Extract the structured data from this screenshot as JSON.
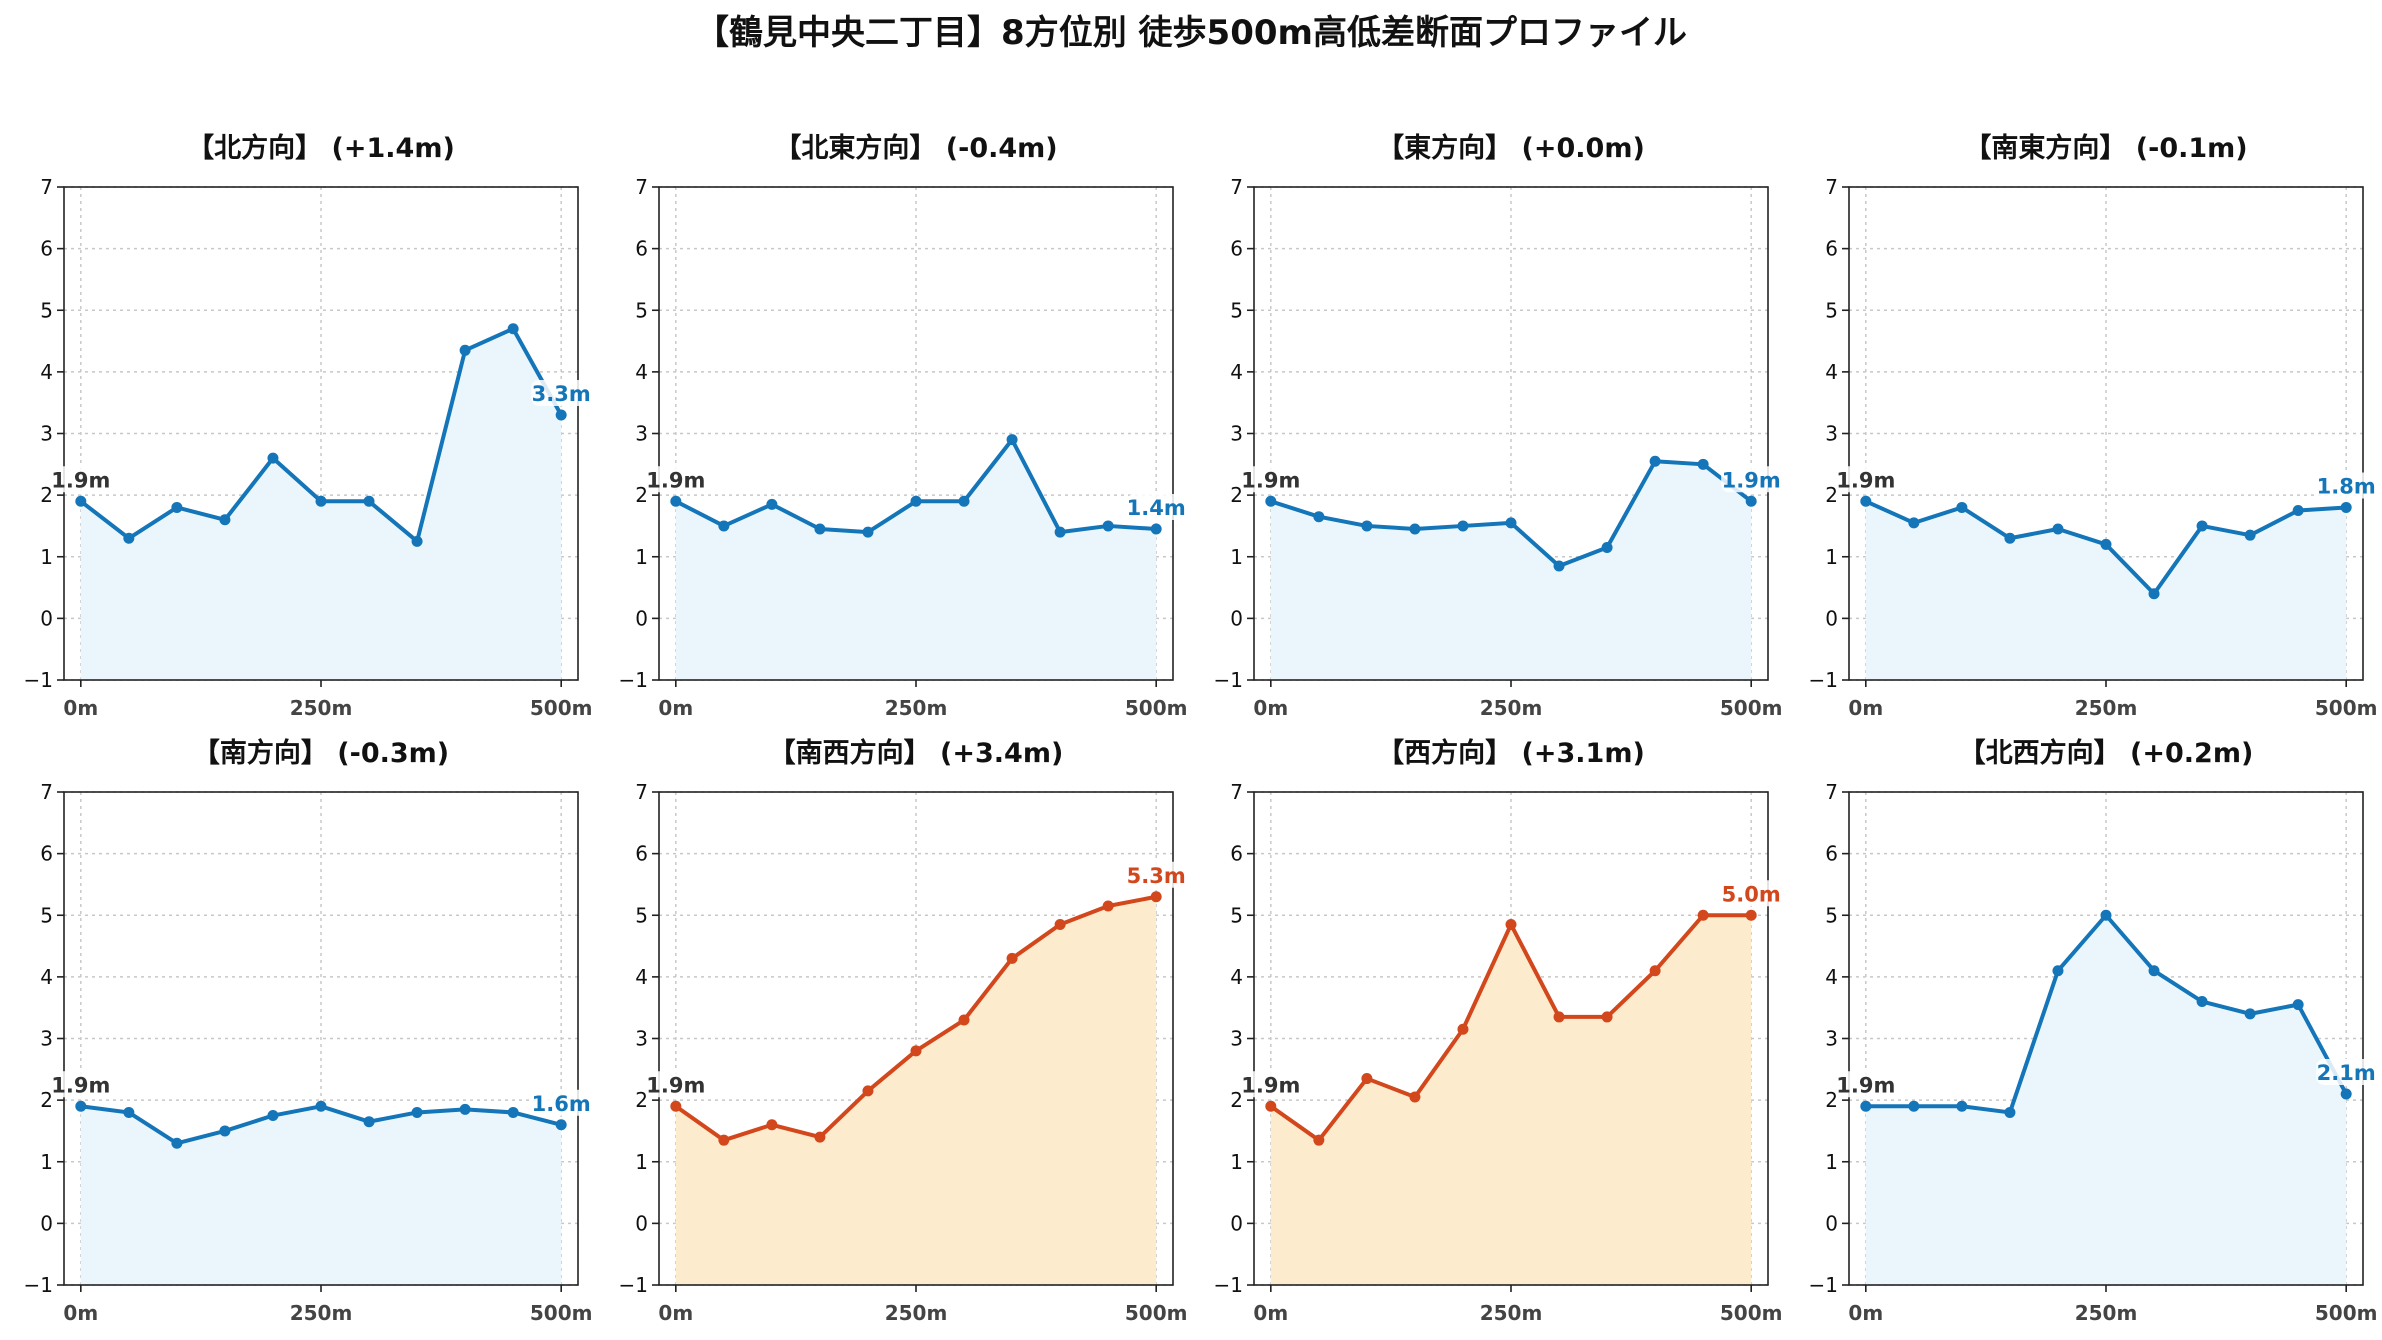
{
  "suptitle": "【鶴見中央二丁目】8方位別 徒歩500m高低差断面プロファイル",
  "colors": {
    "up": "#d2471c",
    "up_fill": "#fdebcd",
    "other": "#1475b8",
    "other_fill": "#eaf6fc",
    "start_label": "#333333"
  },
  "chart_data": [
    {
      "type": "line",
      "title": "【北方向】 (+1.4m)",
      "x": [
        0,
        50,
        100,
        150,
        200,
        250,
        300,
        350,
        400,
        450,
        500
      ],
      "values": [
        1.9,
        1.3,
        1.8,
        1.6,
        2.6,
        1.9,
        1.9,
        1.25,
        4.35,
        4.7,
        3.3
      ],
      "start_label": "1.9m",
      "end_label": "3.3m",
      "trend": "other",
      "ylim": [
        -1,
        7
      ],
      "yticks": [
        -1,
        0,
        1,
        2,
        3,
        4,
        5,
        6,
        7
      ],
      "ytick_labels": [
        "−1",
        "0",
        "1",
        "2",
        "3",
        "4",
        "5",
        "6",
        "7"
      ],
      "xticks": [
        0,
        250,
        500
      ],
      "xtick_labels": [
        "0m",
        "250m",
        "500m"
      ],
      "grid": true
    },
    {
      "type": "line",
      "title": "【北東方向】 (-0.4m)",
      "x": [
        0,
        50,
        100,
        150,
        200,
        250,
        300,
        350,
        400,
        450,
        500
      ],
      "values": [
        1.9,
        1.5,
        1.85,
        1.45,
        1.4,
        1.9,
        1.9,
        2.9,
        1.4,
        1.5,
        1.45
      ],
      "start_label": "1.9m",
      "end_label": "1.4m",
      "trend": "other",
      "ylim": [
        -1,
        7
      ],
      "yticks": [
        -1,
        0,
        1,
        2,
        3,
        4,
        5,
        6,
        7
      ],
      "ytick_labels": [
        "−1",
        "0",
        "1",
        "2",
        "3",
        "4",
        "5",
        "6",
        "7"
      ],
      "xticks": [
        0,
        250,
        500
      ],
      "xtick_labels": [
        "0m",
        "250m",
        "500m"
      ],
      "grid": true
    },
    {
      "type": "line",
      "title": "【東方向】 (+0.0m)",
      "x": [
        0,
        50,
        100,
        150,
        200,
        250,
        300,
        350,
        400,
        450,
        500
      ],
      "values": [
        1.9,
        1.65,
        1.5,
        1.45,
        1.5,
        1.55,
        0.85,
        1.15,
        2.55,
        2.5,
        1.9
      ],
      "start_label": "1.9m",
      "end_label": "1.9m",
      "trend": "other",
      "ylim": [
        -1,
        7
      ],
      "yticks": [
        -1,
        0,
        1,
        2,
        3,
        4,
        5,
        6,
        7
      ],
      "ytick_labels": [
        "−1",
        "0",
        "1",
        "2",
        "3",
        "4",
        "5",
        "6",
        "7"
      ],
      "xticks": [
        0,
        250,
        500
      ],
      "xtick_labels": [
        "0m",
        "250m",
        "500m"
      ],
      "grid": true
    },
    {
      "type": "line",
      "title": "【南東方向】 (-0.1m)",
      "x": [
        0,
        50,
        100,
        150,
        200,
        250,
        300,
        350,
        400,
        450,
        500
      ],
      "values": [
        1.9,
        1.55,
        1.8,
        1.3,
        1.45,
        1.2,
        0.4,
        1.5,
        1.35,
        1.75,
        1.8
      ],
      "start_label": "1.9m",
      "end_label": "1.8m",
      "trend": "other",
      "ylim": [
        -1,
        7
      ],
      "yticks": [
        -1,
        0,
        1,
        2,
        3,
        4,
        5,
        6,
        7
      ],
      "ytick_labels": [
        "−1",
        "0",
        "1",
        "2",
        "3",
        "4",
        "5",
        "6",
        "7"
      ],
      "xticks": [
        0,
        250,
        500
      ],
      "xtick_labels": [
        "0m",
        "250m",
        "500m"
      ],
      "grid": true
    },
    {
      "type": "line",
      "title": "【南方向】 (-0.3m)",
      "x": [
        0,
        50,
        100,
        150,
        200,
        250,
        300,
        350,
        400,
        450,
        500
      ],
      "values": [
        1.9,
        1.8,
        1.3,
        1.5,
        1.75,
        1.9,
        1.65,
        1.8,
        1.85,
        1.8,
        1.6
      ],
      "start_label": "1.9m",
      "end_label": "1.6m",
      "trend": "other",
      "ylim": [
        -1,
        7
      ],
      "yticks": [
        -1,
        0,
        1,
        2,
        3,
        4,
        5,
        6,
        7
      ],
      "ytick_labels": [
        "−1",
        "0",
        "1",
        "2",
        "3",
        "4",
        "5",
        "6",
        "7"
      ],
      "xticks": [
        0,
        250,
        500
      ],
      "xtick_labels": [
        "0m",
        "250m",
        "500m"
      ],
      "grid": true
    },
    {
      "type": "line",
      "title": "【南西方向】 (+3.4m)",
      "x": [
        0,
        50,
        100,
        150,
        200,
        250,
        300,
        350,
        400,
        450,
        500
      ],
      "values": [
        1.9,
        1.35,
        1.6,
        1.4,
        2.15,
        2.8,
        3.3,
        4.3,
        4.85,
        5.15,
        5.3
      ],
      "start_label": "1.9m",
      "end_label": "5.3m",
      "trend": "up",
      "ylim": [
        -1,
        7
      ],
      "yticks": [
        -1,
        0,
        1,
        2,
        3,
        4,
        5,
        6,
        7
      ],
      "ytick_labels": [
        "−1",
        "0",
        "1",
        "2",
        "3",
        "4",
        "5",
        "6",
        "7"
      ],
      "xticks": [
        0,
        250,
        500
      ],
      "xtick_labels": [
        "0m",
        "250m",
        "500m"
      ],
      "grid": true
    },
    {
      "type": "line",
      "title": "【西方向】 (+3.1m)",
      "x": [
        0,
        50,
        100,
        150,
        200,
        250,
        300,
        350,
        400,
        450,
        500
      ],
      "values": [
        1.9,
        1.35,
        2.35,
        2.05,
        3.15,
        4.85,
        3.35,
        3.35,
        4.1,
        5.0,
        5.0
      ],
      "start_label": "1.9m",
      "end_label": "5.0m",
      "trend": "up",
      "ylim": [
        -1,
        7
      ],
      "yticks": [
        -1,
        0,
        1,
        2,
        3,
        4,
        5,
        6,
        7
      ],
      "ytick_labels": [
        "−1",
        "0",
        "1",
        "2",
        "3",
        "4",
        "5",
        "6",
        "7"
      ],
      "xticks": [
        0,
        250,
        500
      ],
      "xtick_labels": [
        "0m",
        "250m",
        "500m"
      ],
      "grid": true
    },
    {
      "type": "line",
      "title": "【北西方向】 (+0.2m)",
      "x": [
        0,
        50,
        100,
        150,
        200,
        250,
        300,
        350,
        400,
        450,
        500
      ],
      "values": [
        1.9,
        1.9,
        1.9,
        1.8,
        4.1,
        5.0,
        4.1,
        3.6,
        3.4,
        3.55,
        2.1
      ],
      "start_label": "1.9m",
      "end_label": "2.1m",
      "trend": "other",
      "ylim": [
        -1,
        7
      ],
      "yticks": [
        -1,
        0,
        1,
        2,
        3,
        4,
        5,
        6,
        7
      ],
      "ytick_labels": [
        "−1",
        "0",
        "1",
        "2",
        "3",
        "4",
        "5",
        "6",
        "7"
      ],
      "xticks": [
        0,
        250,
        500
      ],
      "xtick_labels": [
        "0m",
        "250m",
        "500m"
      ],
      "grid": true
    }
  ]
}
